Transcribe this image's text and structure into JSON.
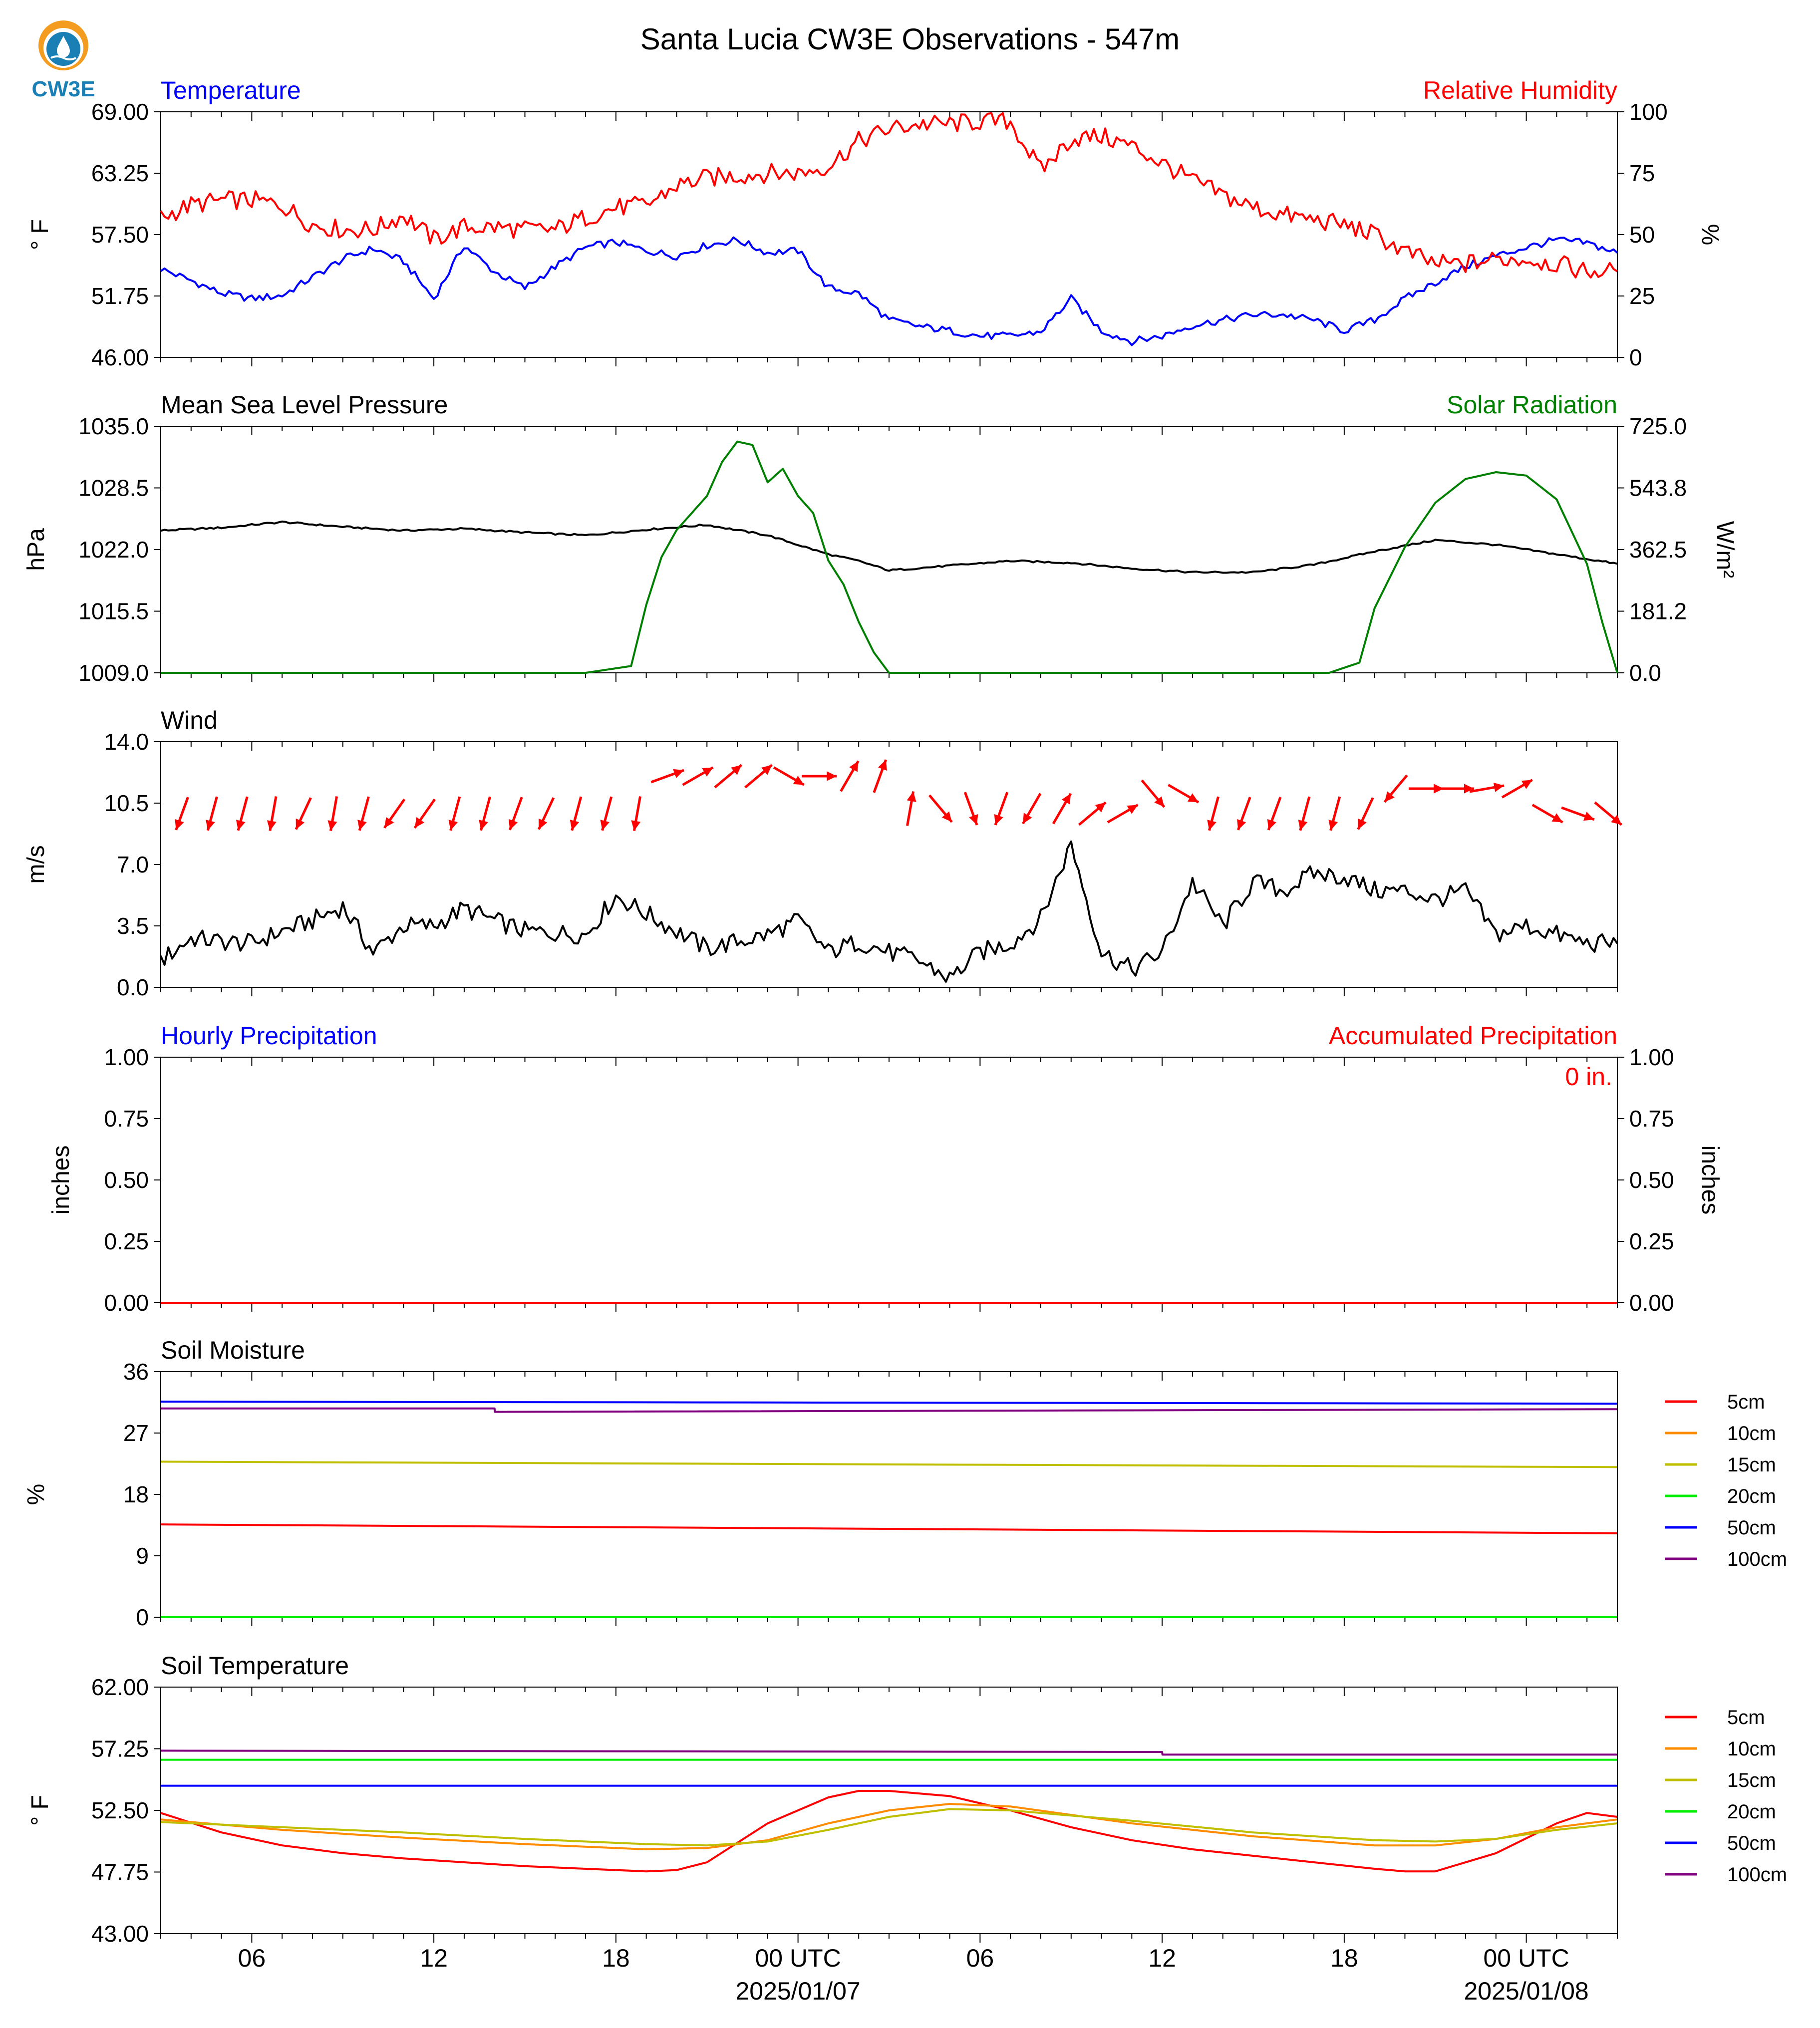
{
  "title": "Santa Lucia CW3E Observations - 547m",
  "logo_text": "CW3E",
  "x_axis": {
    "tick_labels": [
      "06",
      "12",
      "18",
      "00 UTC",
      "06",
      "12",
      "18",
      "00 UTC"
    ],
    "date_labels": [
      "2025/01/07",
      "2025/01/08"
    ]
  },
  "colors": {
    "temperature": "#0000ff",
    "humidity": "#ff0000",
    "pressure": "#000000",
    "solar": "#008000",
    "wind": "#000000",
    "wind_arrow": "#ff0000",
    "soil_5cm": "#ff0000",
    "soil_10cm": "#ff8c00",
    "soil_15cm": "#bfbf00",
    "soil_20cm": "#00ee00",
    "soil_50cm": "#0000ff",
    "soil_100cm": "#800080"
  },
  "chart_data": [
    {
      "type": "line",
      "title_left": "Temperature",
      "title_right": "Relative Humidity",
      "ylabel_left": "° F",
      "ylabel_right": "%",
      "ylim_left": [
        46.0,
        69.0
      ],
      "ylim_right": [
        0,
        100
      ],
      "yticks_left": [
        "69.00",
        "63.25",
        "57.50",
        "51.75",
        "46.00"
      ],
      "yticks_right": [
        "100",
        "75",
        "50",
        "25",
        "0"
      ],
      "series": [
        {
          "name": "Temperature",
          "axis": "left",
          "x": [
            0,
            1,
            2,
            3,
            4,
            5,
            6,
            7,
            8,
            9,
            10,
            11,
            12,
            13,
            14,
            15,
            16,
            17,
            18,
            19,
            20,
            21,
            22,
            23,
            24,
            25,
            26,
            27,
            28,
            29,
            30,
            31,
            32,
            33,
            34,
            35,
            36,
            37,
            38,
            39,
            40,
            41,
            42,
            43,
            44,
            45,
            46,
            47,
            48
          ],
          "values": [
            54.3,
            53.2,
            52.0,
            51.5,
            51.8,
            53.5,
            55.2,
            56.2,
            55.0,
            51.5,
            56.5,
            54.0,
            52.5,
            54.5,
            56.3,
            56.8,
            56.0,
            55.5,
            56.5,
            57.0,
            55.8,
            56.0,
            52.5,
            52.0,
            49.5,
            48.9,
            48.5,
            48.0,
            48.0,
            48.4,
            51.5,
            48.5,
            47.5,
            48.0,
            49.0,
            49.5,
            50.0,
            50.0,
            49.5,
            48.5,
            49.5,
            51.5,
            53.0,
            54.5,
            55.5,
            56.3,
            57.0,
            56.7,
            55.8
          ]
        },
        {
          "name": "Relative Humidity",
          "axis": "right",
          "x": [
            0,
            1,
            2,
            3,
            4,
            5,
            6,
            7,
            8,
            9,
            10,
            11,
            12,
            13,
            14,
            15,
            16,
            17,
            18,
            19,
            20,
            21,
            22,
            23,
            24,
            25,
            26,
            27,
            28,
            29,
            30,
            31,
            32,
            33,
            34,
            35,
            36,
            37,
            38,
            39,
            40,
            41,
            42,
            43,
            44,
            45,
            46,
            47,
            48
          ],
          "values": [
            57,
            62,
            64,
            64,
            62,
            54,
            52,
            52,
            58,
            48,
            53,
            53,
            52,
            52,
            57,
            61,
            62,
            70,
            73,
            74,
            75,
            75,
            78,
            88,
            93,
            95,
            95,
            96,
            96,
            76,
            89,
            90,
            86,
            79,
            72,
            66,
            61,
            58,
            56,
            54,
            50,
            43,
            38,
            38,
            40,
            40,
            38,
            35,
            35
          ]
        }
      ]
    },
    {
      "type": "line",
      "title_left": "Mean Sea Level Pressure",
      "title_right": "Solar Radiation",
      "ylabel_left": "hPa",
      "ylabel_right": "W/m²",
      "ylim_left": [
        1009.0,
        1035.0
      ],
      "ylim_right": [
        0.0,
        725.0
      ],
      "yticks_left": [
        "1035.0",
        "1028.5",
        "1022.0",
        "1015.5",
        "1009.0"
      ],
      "yticks_right": [
        "725.0",
        "543.8",
        "362.5",
        "181.2",
        "0.0"
      ],
      "series": [
        {
          "name": "Mean Sea Level Pressure",
          "axis": "left",
          "x": [
            0,
            2,
            4,
            6,
            8,
            10,
            12,
            14,
            16,
            18,
            20,
            22,
            23,
            24,
            26,
            28,
            30,
            32,
            34,
            36,
            38,
            40,
            42,
            44,
            46,
            48
          ],
          "values": [
            1024.0,
            1024.3,
            1024.9,
            1024.4,
            1024.0,
            1024.2,
            1023.8,
            1023.5,
            1024.1,
            1024.6,
            1023.5,
            1021.5,
            1020.8,
            1019.8,
            1020.3,
            1020.8,
            1020.6,
            1020.0,
            1019.6,
            1019.6,
            1020.4,
            1021.8,
            1023.0,
            1022.5,
            1021.5,
            1020.5
          ]
        },
        {
          "name": "Solar Radiation",
          "axis": "right",
          "x": [
            0,
            14,
            15.5,
            16,
            16.5,
            17,
            17.5,
            18,
            18.5,
            19,
            19.5,
            20,
            20.5,
            21,
            21.5,
            22,
            22.5,
            23,
            23.5,
            24,
            38.5,
            39.5,
            40,
            41,
            42,
            43,
            44,
            45,
            46,
            47,
            47.5,
            48
          ],
          "values": [
            0,
            0,
            20,
            200,
            340,
            420,
            470,
            520,
            620,
            680,
            670,
            560,
            600,
            520,
            470,
            330,
            260,
            150,
            60,
            0,
            0,
            30,
            190,
            370,
            500,
            570,
            590,
            580,
            510,
            320,
            150,
            0
          ]
        }
      ]
    },
    {
      "type": "line",
      "title_left": "Wind",
      "ylabel_left": "m/s",
      "ylim_left": [
        0.0,
        14.0
      ],
      "yticks_left": [
        "14.0",
        "10.5",
        "7.0",
        "3.5",
        "0.0"
      ],
      "series": [
        {
          "name": "Wind",
          "axis": "left",
          "x": [
            0,
            1,
            2,
            3,
            4,
            5,
            6,
            7,
            8,
            9,
            10,
            11,
            12,
            13,
            14,
            15,
            16,
            17,
            18,
            19,
            20,
            21,
            22,
            23,
            24,
            25,
            26,
            27,
            28,
            29,
            30,
            31,
            32,
            33,
            34,
            35,
            36,
            37,
            38,
            39,
            40,
            41,
            42,
            43,
            44,
            45,
            46,
            47,
            48
          ],
          "values": [
            1.5,
            2.8,
            2.6,
            2.5,
            3.2,
            3.8,
            4.6,
            2.0,
            3.5,
            3.5,
            4.5,
            3.8,
            3.2,
            3.1,
            3.0,
            5.2,
            4.2,
            3.2,
            2.2,
            2.6,
            3.0,
            3.8,
            2.0,
            2.6,
            2.0,
            1.5,
            0.5,
            2.0,
            2.5,
            3.9,
            8.2,
            2.0,
            1.0,
            2.0,
            6.0,
            3.5,
            6.0,
            5.5,
            6.5,
            6.3,
            5.5,
            5.5,
            5.0,
            5.5,
            3.0,
            3.5,
            3.0,
            2.5,
            2.5
          ]
        }
      ],
      "wind_arrow_directions_deg": [
        20,
        15,
        15,
        10,
        25,
        10,
        15,
        35,
        35,
        15,
        15,
        20,
        25,
        15,
        15,
        10,
        250,
        240,
        230,
        230,
        300,
        270,
        210,
        200,
        190,
        320,
        340,
        20,
        30,
        210,
        230,
        240,
        320,
        300,
        15,
        20,
        20,
        15,
        15,
        25,
        40,
        270,
        270,
        260,
        240,
        300,
        290,
        310
      ]
    },
    {
      "type": "line",
      "title_left": "Hourly Precipitation",
      "title_right": "Accumulated Precipitation",
      "ylabel_left": "inches",
      "ylabel_right": "inches",
      "ylim_left": [
        0.0,
        1.0
      ],
      "ylim_right": [
        0.0,
        1.0
      ],
      "yticks_left": [
        "1.00",
        "0.75",
        "0.50",
        "0.25",
        "0.00"
      ],
      "yticks_right": [
        "1.00",
        "0.75",
        "0.50",
        "0.25",
        "0.00"
      ],
      "annotation": "0 in.",
      "series": [
        {
          "name": "Hourly Precipitation",
          "axis": "left",
          "x": [
            0,
            48
          ],
          "values": [
            0,
            0
          ]
        },
        {
          "name": "Accumulated Precipitation",
          "axis": "right",
          "x": [
            0,
            48
          ],
          "values": [
            0,
            0
          ]
        }
      ]
    },
    {
      "type": "line",
      "title_left": "Soil Moisture",
      "ylabel_left": "%",
      "ylim_left": [
        0,
        36
      ],
      "yticks_left": [
        "36",
        "27",
        "18",
        "9",
        "0"
      ],
      "legend": [
        "5cm",
        "10cm",
        "15cm",
        "20cm",
        "50cm",
        "100cm"
      ],
      "legend_position": "right",
      "series": [
        {
          "name": "5cm",
          "x": [
            0,
            48
          ],
          "values": [
            13.6,
            12.3
          ]
        },
        {
          "name": "10cm",
          "x": [
            0,
            48
          ],
          "values": [
            0,
            0
          ]
        },
        {
          "name": "15cm",
          "x": [
            0,
            48
          ],
          "values": [
            22.8,
            22.0
          ]
        },
        {
          "name": "20cm",
          "x": [
            0,
            48
          ],
          "values": [
            0,
            0
          ]
        },
        {
          "name": "50cm",
          "x": [
            0,
            48
          ],
          "values": [
            31.6,
            31.3
          ]
        },
        {
          "name": "100cm",
          "x": [
            0,
            11,
            11.01,
            48
          ],
          "values": [
            30.6,
            30.6,
            30.1,
            30.5
          ]
        }
      ]
    },
    {
      "type": "line",
      "title_left": "Soil Temperature",
      "ylabel_left": "° F",
      "ylim_left": [
        43.0,
        62.0
      ],
      "yticks_left": [
        "62.00",
        "57.25",
        "52.50",
        "47.75",
        "43.00"
      ],
      "legend": [
        "5cm",
        "10cm",
        "15cm",
        "20cm",
        "50cm",
        "100cm"
      ],
      "legend_position": "right",
      "series": [
        {
          "name": "5cm",
          "x": [
            0,
            2,
            4,
            6,
            8,
            10,
            12,
            14,
            16,
            17,
            18,
            20,
            22,
            23,
            24,
            26,
            28,
            30,
            32,
            34,
            36,
            38,
            40,
            41,
            42,
            44,
            46,
            47,
            48
          ],
          "values": [
            52.3,
            50.8,
            49.8,
            49.2,
            48.8,
            48.5,
            48.2,
            48.0,
            47.8,
            47.9,
            48.5,
            51.5,
            53.5,
            54.0,
            54.0,
            53.6,
            52.5,
            51.2,
            50.2,
            49.5,
            49.0,
            48.5,
            48.0,
            47.8,
            47.8,
            49.2,
            51.5,
            52.3,
            52.0
          ]
        },
        {
          "name": "10cm",
          "x": [
            0,
            4,
            8,
            12,
            16,
            18,
            20,
            22,
            24,
            26,
            28,
            32,
            36,
            40,
            42,
            44,
            46,
            48
          ],
          "values": [
            51.8,
            51.0,
            50.4,
            49.9,
            49.5,
            49.6,
            50.2,
            51.5,
            52.5,
            53.0,
            52.8,
            51.5,
            50.5,
            49.8,
            49.8,
            50.3,
            51.2,
            51.8
          ]
        },
        {
          "name": "15cm",
          "x": [
            0,
            4,
            8,
            12,
            16,
            18,
            20,
            22,
            24,
            26,
            28,
            32,
            36,
            40,
            42,
            44,
            46,
            48
          ],
          "values": [
            51.6,
            51.2,
            50.8,
            50.3,
            49.9,
            49.8,
            50.1,
            51.0,
            52.0,
            52.6,
            52.5,
            51.7,
            50.8,
            50.2,
            50.1,
            50.3,
            51.0,
            51.5
          ]
        },
        {
          "name": "20cm",
          "x": [
            0,
            48
          ],
          "values": [
            56.4,
            56.4
          ]
        },
        {
          "name": "50cm",
          "x": [
            0,
            48
          ],
          "values": [
            54.4,
            54.4
          ]
        },
        {
          "name": "100cm",
          "x": [
            0,
            33,
            33.01,
            48
          ],
          "values": [
            57.1,
            57.0,
            56.8,
            56.8
          ]
        }
      ]
    }
  ]
}
